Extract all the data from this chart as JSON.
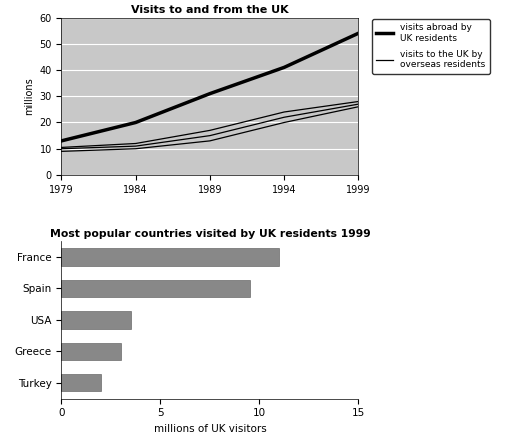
{
  "line_chart": {
    "title": "Visits to and from the UK",
    "ylabel": "millions",
    "years": [
      1979,
      1984,
      1989,
      1994,
      1999
    ],
    "visits_abroad": [
      13,
      20,
      31,
      41,
      54
    ],
    "overseas_line1": [
      9,
      10,
      13,
      20,
      26
    ],
    "overseas_line2": [
      10,
      11,
      15,
      22,
      27
    ],
    "overseas_line3": [
      10.5,
      12,
      17,
      24,
      28
    ],
    "legend_abroad": "visits abroad by\nUK residents",
    "legend_overseas": "visits to the UK by\noverseas residents",
    "ylim": [
      0,
      60
    ],
    "yticks": [
      0,
      10,
      20,
      30,
      40,
      50,
      60
    ],
    "bg_color": "#c8c8c8"
  },
  "bar_chart": {
    "title": "Most popular countries visited by UK residents 1999",
    "xlabel": "millions of UK visitors",
    "countries": [
      "France",
      "Spain",
      "USA",
      "Greece",
      "Turkey"
    ],
    "values": [
      11.0,
      9.5,
      3.5,
      3.0,
      2.0
    ],
    "bar_color": "#888888",
    "xlim": [
      0,
      15
    ],
    "xticks": [
      0,
      5,
      10,
      15
    ]
  },
  "background_color": "#ffffff"
}
